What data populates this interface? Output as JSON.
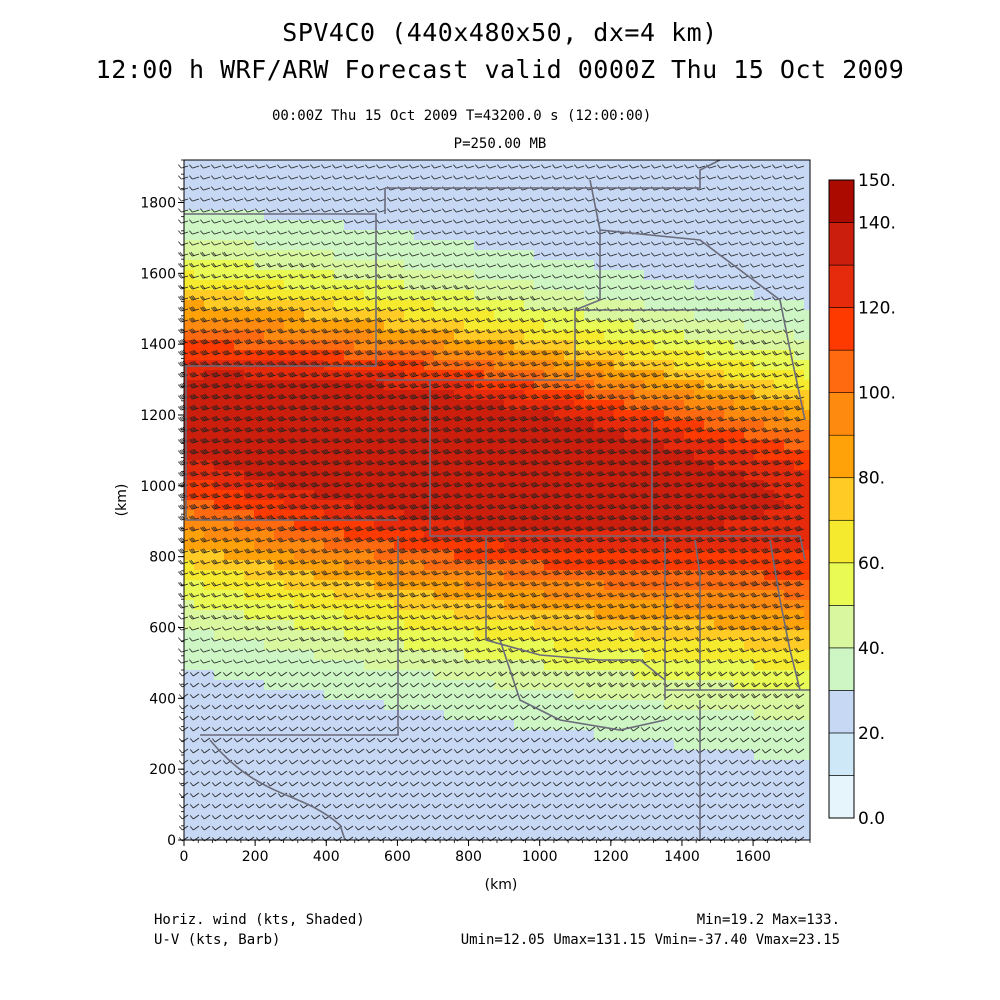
{
  "header": {
    "title_line1": "SPV4C0 (440x480x50, dx=4 km)",
    "title_line2": "12:00 h WRF/ARW Forecast valid 0000Z Thu 15 Oct 2009",
    "time_info": "00:00Z Thu 15 Oct 2009    T=43200.0 s (12:00:00)",
    "level_info": "P=250.00 MB"
  },
  "footer": {
    "left_line1": "Horiz. wind (kts, Shaded)",
    "left_line2": "U-V (kts, Barb)",
    "right_line1": "Min=19.2 Max=133.",
    "right_line2": "Umin=12.05 Umax=131.15 Vmin=-37.40 Vmax=23.15"
  },
  "chart_data": {
    "type": "heatmap",
    "field": "horizontal wind speed at 250 MB with U-V wind barbs",
    "xlabel": "(km)",
    "ylabel": "(km)",
    "xlim": [
      0,
      1760
    ],
    "ylim": [
      0,
      1920
    ],
    "x_ticks": [
      "0",
      "200",
      "400",
      "600",
      "800",
      "1000",
      "1200",
      "1400",
      "1600"
    ],
    "y_ticks": [
      "0",
      "200",
      "400",
      "600",
      "800",
      "1000",
      "1200",
      "1400",
      "1600",
      "1800"
    ],
    "min": 19.2,
    "max": 133,
    "colorbar": {
      "labels": [
        "150.",
        "140.",
        "120.",
        "100.",
        "80.",
        "60.",
        "40.",
        "20.",
        "0.0"
      ],
      "label_values": [
        150,
        140,
        120,
        100,
        80,
        60,
        40,
        20,
        0
      ],
      "levels": [
        0,
        10,
        20,
        30,
        40,
        50,
        60,
        70,
        80,
        90,
        100,
        110,
        120,
        130,
        140,
        150
      ],
      "colors": [
        "#e6f4fb",
        "#cfe8f8",
        "#c6d8f4",
        "#cdf6c4",
        "#d9f79f",
        "#e9fa55",
        "#f6ea2e",
        "#ffcb24",
        "#ffa20a",
        "#ff8a10",
        "#ff6a10",
        "#ff3a00",
        "#e62a0c",
        "#cc1e0c",
        "#aa0a00"
      ]
    },
    "jet_core": {
      "x_range": [
        0,
        1350
      ],
      "y_range": [
        900,
        1450
      ],
      "speed": 130
    },
    "weak_region": {
      "x_range": [
        0,
        1100
      ],
      "y_range": [
        0,
        250
      ],
      "speed": 25
    }
  }
}
